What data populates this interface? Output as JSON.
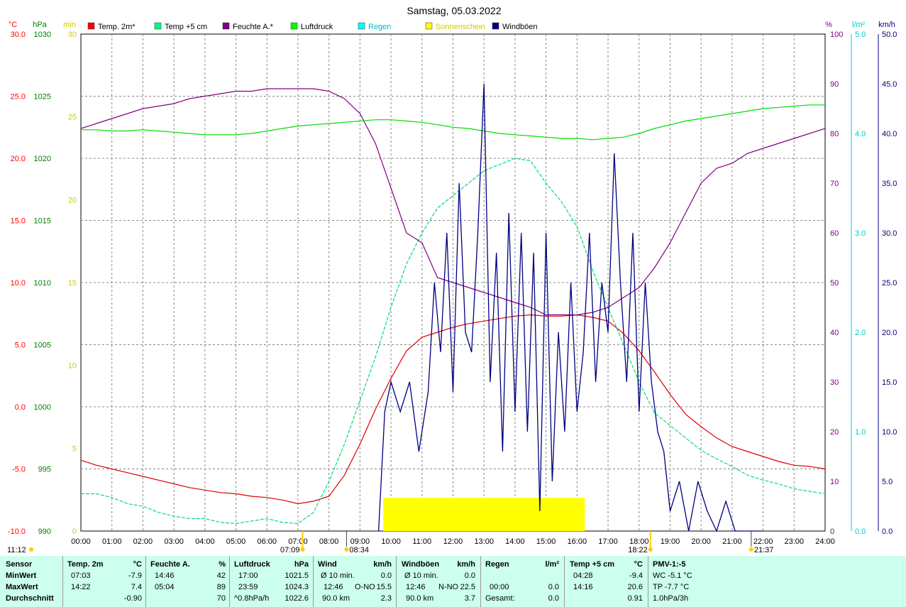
{
  "title": "Samstag, 05.03.2022",
  "legend": [
    {
      "label": "Temp. 2m*",
      "color": "#ff0000"
    },
    {
      "label": "Temp +5 cm",
      "color": "#00ff7f"
    },
    {
      "label": "Feuchte A.*",
      "color": "#800080"
    },
    {
      "label": "Luftdruck",
      "color": "#00ff00"
    },
    {
      "label": "Regen",
      "color": "#00ffff"
    },
    {
      "label": "Sonnenschein",
      "color": "#ffff00"
    },
    {
      "label": "Windböen",
      "color": "#000080"
    }
  ],
  "axes": {
    "temp": {
      "unit": "°C",
      "color": "#ff0000",
      "ticks": [
        "30.0",
        "25.0",
        "20.0",
        "15.0",
        "10.0",
        "5.0",
        "0.0",
        "-5.0",
        "-10.0"
      ]
    },
    "pressure": {
      "unit": "hPa",
      "color": "#008000",
      "ticks": [
        "1030",
        "1025",
        "1020",
        "1015",
        "1010",
        "1005",
        "1000",
        "995",
        "990"
      ]
    },
    "sun": {
      "unit": "min",
      "color": "#ffff00",
      "ticks": [
        "30",
        "25",
        "20",
        "15",
        "10",
        "5",
        "0"
      ]
    },
    "humidity": {
      "unit": "%",
      "color": "#800080",
      "ticks": [
        "100",
        "90",
        "80",
        "70",
        "60",
        "50",
        "40",
        "30",
        "20",
        "10",
        "0"
      ]
    },
    "rain": {
      "unit": "l/m²",
      "color": "#00ffff",
      "ticks": [
        "5.0",
        "4.0",
        "3.0",
        "2.0",
        "1.0",
        "0.0"
      ]
    },
    "wind": {
      "unit": "km/h",
      "color": "#000080",
      "ticks": [
        "50.0",
        "45.0",
        "40.0",
        "35.0",
        "30.0",
        "25.0",
        "20.0",
        "15.0",
        "10.0",
        "5.0",
        "0.0"
      ]
    }
  },
  "x_ticks": [
    "00:00",
    "01:00",
    "02:00",
    "03:00",
    "04:00",
    "05:00",
    "06:00",
    "07:00",
    "08:00",
    "09:00",
    "10:00",
    "11:00",
    "12:00",
    "13:00",
    "14:00",
    "15:00",
    "16:00",
    "17:00",
    "18:00",
    "19:00",
    "20:00",
    "21:00",
    "22:00",
    "23:00",
    "24:00"
  ],
  "markers": {
    "current_time": "11:12",
    "sunrise": "07:09",
    "moonrise": "08:34",
    "sunset": "18:22",
    "moonset": "21:37"
  },
  "chart_data": {
    "type": "line",
    "x_unit": "hours",
    "xlim": [
      0,
      24
    ],
    "series": [
      {
        "name": "Temp. 2m*",
        "axis": "temp",
        "x": [
          0,
          0.5,
          1,
          1.5,
          2,
          2.5,
          3,
          3.5,
          4,
          4.5,
          5,
          5.5,
          6,
          6.5,
          7,
          7.5,
          8,
          8.5,
          9,
          9.5,
          10,
          10.5,
          11,
          11.5,
          12,
          12.5,
          13,
          13.5,
          14,
          14.5,
          15,
          15.5,
          16,
          16.5,
          17,
          17.5,
          18,
          18.5,
          19,
          19.5,
          20,
          20.5,
          21,
          21.5,
          22,
          22.5,
          23,
          23.5,
          24
        ],
        "y": [
          -4.3,
          -4.7,
          -5.0,
          -5.3,
          -5.6,
          -5.9,
          -6.2,
          -6.5,
          -6.7,
          -6.9,
          -7.0,
          -7.2,
          -7.3,
          -7.5,
          -7.8,
          -7.6,
          -7.2,
          -5.5,
          -3.0,
          -0.2,
          2.3,
          4.5,
          5.6,
          6.0,
          6.4,
          6.7,
          6.9,
          7.1,
          7.3,
          7.4,
          7.3,
          7.3,
          7.4,
          7.2,
          6.9,
          5.9,
          4.5,
          2.8,
          1.0,
          -0.6,
          -1.6,
          -2.5,
          -3.2,
          -3.6,
          -4.0,
          -4.4,
          -4.7,
          -4.8,
          -5.0
        ]
      },
      {
        "name": "Temp +5 cm",
        "axis": "temp",
        "x": [
          0,
          0.5,
          1,
          1.5,
          2,
          2.5,
          3,
          3.5,
          4,
          4.5,
          5,
          5.5,
          6,
          6.5,
          7,
          7.5,
          8,
          8.5,
          9,
          9.5,
          10,
          10.5,
          11,
          11.5,
          12,
          12.5,
          13,
          13.5,
          14,
          14.5,
          15,
          15.5,
          16,
          16.5,
          17,
          17.5,
          18,
          18.5,
          19,
          19.5,
          20,
          20.5,
          21,
          21.5,
          22,
          22.5,
          23,
          23.5,
          24
        ],
        "y": [
          -7.0,
          -7.0,
          -7.3,
          -7.8,
          -8.0,
          -8.5,
          -8.8,
          -9.0,
          -9.0,
          -9.3,
          -9.4,
          -9.2,
          -9.0,
          -9.3,
          -9.4,
          -8.5,
          -6.0,
          -3.0,
          0.5,
          4.0,
          8.0,
          11.5,
          14.0,
          16.0,
          17.0,
          18.0,
          19.0,
          19.5,
          20.0,
          19.8,
          18.0,
          16.5,
          14.5,
          11.0,
          8.0,
          5.0,
          2.0,
          -0.5,
          -1.5,
          -2.5,
          -3.5,
          -4.2,
          -4.8,
          -5.5,
          -5.9,
          -6.2,
          -6.6,
          -6.8,
          -7.0
        ]
      },
      {
        "name": "Feuchte A.*",
        "axis": "humidity",
        "x": [
          0,
          0.5,
          1,
          1.5,
          2,
          2.5,
          3,
          3.5,
          4,
          4.5,
          5,
          5.5,
          6,
          6.5,
          7,
          7.5,
          8,
          8.5,
          9,
          9.5,
          10,
          10.5,
          11,
          11.5,
          12,
          12.5,
          13,
          13.5,
          14,
          14.5,
          15,
          15.5,
          16,
          16.5,
          17,
          17.5,
          18,
          18.5,
          19,
          19.5,
          20,
          20.5,
          21,
          21.5,
          22,
          22.5,
          23,
          23.5,
          24
        ],
        "y": [
          81,
          82,
          83,
          84,
          85,
          85.5,
          86,
          87,
          87.5,
          88,
          88.5,
          88.5,
          89,
          89,
          89,
          89,
          88.5,
          87,
          84,
          78,
          69,
          60,
          58,
          51,
          50,
          49,
          48,
          47,
          46,
          45,
          43.5,
          43.5,
          43.5,
          44,
          45,
          47,
          49,
          53,
          58,
          64,
          70,
          73,
          74,
          76,
          77,
          78,
          79,
          80,
          81
        ]
      },
      {
        "name": "Luftdruck",
        "axis": "pressure",
        "x": [
          0,
          0.5,
          1,
          1.5,
          2,
          2.5,
          3,
          3.5,
          4,
          4.5,
          5,
          5.5,
          6,
          6.5,
          7,
          7.5,
          8,
          8.5,
          9,
          9.5,
          10,
          10.5,
          11,
          11.5,
          12,
          12.5,
          13,
          13.5,
          14,
          14.5,
          15,
          15.5,
          16,
          16.5,
          17,
          17.5,
          18,
          18.5,
          19,
          19.5,
          20,
          20.5,
          21,
          21.5,
          22,
          22.5,
          23,
          23.5,
          24
        ],
        "y": [
          1022.3,
          1022.3,
          1022.2,
          1022.2,
          1022.3,
          1022.2,
          1022.1,
          1022.0,
          1021.9,
          1021.9,
          1021.9,
          1022.0,
          1022.2,
          1022.4,
          1022.6,
          1022.7,
          1022.8,
          1022.9,
          1023.0,
          1023.1,
          1023.1,
          1023.0,
          1022.9,
          1022.7,
          1022.5,
          1022.4,
          1022.2,
          1022.0,
          1021.9,
          1021.8,
          1021.7,
          1021.6,
          1021.6,
          1021.5,
          1021.6,
          1021.7,
          1022.0,
          1022.4,
          1022.7,
          1023.0,
          1023.2,
          1023.4,
          1023.6,
          1023.8,
          1024.0,
          1024.1,
          1024.2,
          1024.3,
          1024.3
        ]
      },
      {
        "name": "Windböen",
        "axis": "wind",
        "x": [
          9.6,
          9.8,
          10.0,
          10.3,
          10.6,
          10.9,
          11.2,
          11.4,
          11.6,
          11.8,
          12.0,
          12.2,
          12.4,
          12.6,
          12.8,
          13.0,
          13.2,
          13.4,
          13.6,
          13.8,
          14.0,
          14.2,
          14.4,
          14.6,
          14.8,
          15.0,
          15.2,
          15.4,
          15.6,
          15.8,
          16.0,
          16.2,
          16.4,
          16.6,
          16.8,
          17.0,
          17.2,
          17.4,
          17.6,
          17.8,
          18.0,
          18.2,
          18.4,
          18.6,
          18.8,
          19.0,
          19.3,
          19.6,
          19.9,
          20.2,
          20.5,
          20.8,
          21.1,
          21.4,
          21.7,
          22.0
        ],
        "y": [
          0,
          12,
          15,
          12,
          15,
          8,
          14,
          25,
          18,
          30,
          14,
          35,
          20,
          18,
          30,
          45,
          15,
          28,
          8,
          32,
          12,
          30,
          10,
          28,
          2,
          30,
          5,
          20,
          10,
          25,
          12,
          18,
          30,
          15,
          25,
          20,
          38,
          25,
          15,
          30,
          12,
          25,
          15,
          10,
          8,
          2,
          5,
          0,
          5,
          2,
          0,
          3,
          0,
          0,
          0,
          0
        ]
      }
    ],
    "sunshine": {
      "name": "Sonnenschein",
      "axis": "sun",
      "intervals": [
        [
          9.75,
          16.25
        ]
      ],
      "value": 2
    },
    "ylim": {
      "temp": [
        -10,
        30
      ],
      "pressure": [
        990,
        1030
      ],
      "sun": [
        0,
        30
      ],
      "humidity": [
        0,
        100
      ],
      "rain": [
        0,
        5
      ],
      "wind": [
        0,
        50
      ]
    }
  },
  "stats": {
    "rows": [
      "Sensor",
      "MinWert",
      "MaxWert",
      "Durchschnitt"
    ],
    "temp2m": {
      "header": "Temp. 2m",
      "unit": "°C",
      "rows": [
        [
          "07:03",
          "-7.9"
        ],
        [
          "14:22",
          "7.4"
        ],
        [
          "",
          "-0.90"
        ]
      ]
    },
    "humidity": {
      "header": "Feuchte A.",
      "unit": "%",
      "rows": [
        [
          "14:46",
          "42"
        ],
        [
          "05:04",
          "89"
        ],
        [
          "",
          "70"
        ]
      ]
    },
    "pressure": {
      "header": "Luftdruck",
      "unit": "hPa",
      "rows": [
        [
          "17:00",
          "1021.5"
        ],
        [
          "23:59",
          "1024.3"
        ],
        [
          "^0.8hPa/h",
          "1022.6"
        ]
      ]
    },
    "wind": {
      "header": "Wind",
      "unit": "km/h",
      "rows": [
        [
          "Ø 10 min.",
          "",
          "0.0"
        ],
        [
          "12:46",
          "O-NO",
          "15.5"
        ],
        [
          "90.0 km",
          "",
          "2.3"
        ]
      ]
    },
    "gusts": {
      "header": "Windböen",
      "unit": "km/h",
      "rows": [
        [
          "Ø 10 min.",
          "",
          "0.0"
        ],
        [
          "12:46",
          "N-NO",
          "22.5"
        ],
        [
          "90.0 km",
          "",
          "3.7"
        ]
      ]
    },
    "rain": {
      "header": "Regen",
      "unit": "l/m²",
      "rows": [
        [
          "",
          ""
        ],
        [
          "00:00",
          "0.0"
        ],
        [
          "Gesamt:",
          "0.0"
        ]
      ]
    },
    "temp5cm": {
      "header": "Temp +5 cm",
      "unit": "°C",
      "rows": [
        [
          "04:28",
          "-9.4"
        ],
        [
          "14:16",
          "20.6"
        ],
        [
          "",
          "0.91"
        ]
      ]
    },
    "pmv": {
      "header": "PMV-1:-5",
      "rows": [
        "WC -5.1 °C",
        "TP -7.7 °C",
        "1.0hPa/3h"
      ]
    }
  }
}
